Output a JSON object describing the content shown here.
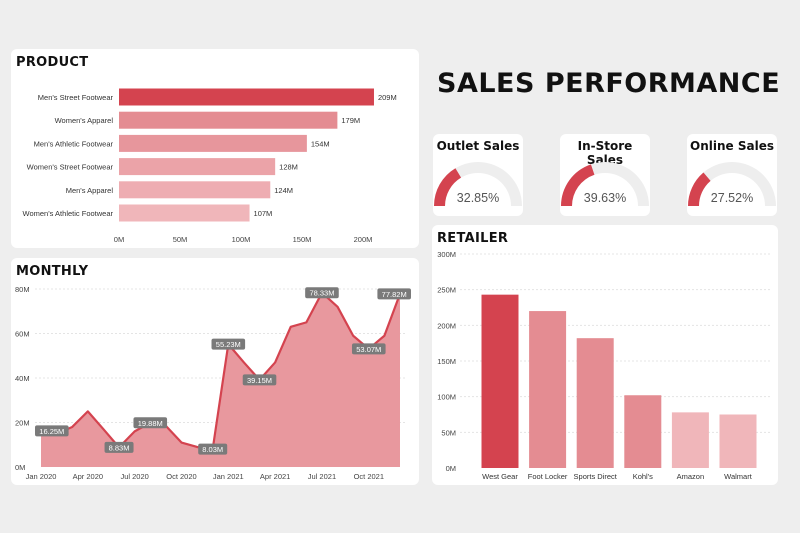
{
  "page_title": "SALES PERFORMANCE",
  "colors": {
    "accent": "#d4434f",
    "mid": "#e7949a",
    "light": "#f0b9bd",
    "area": "#e8989e",
    "track": "#eeeeee"
  },
  "kpis": [
    {
      "label": "Outlet Sales",
      "value": 32.85,
      "display": "32.85%"
    },
    {
      "label": "In-Store Sales",
      "value": 39.63,
      "display": "39.63%"
    },
    {
      "label": "Online Sales",
      "value": 27.52,
      "display": "27.52%"
    }
  ],
  "chart_data": [
    {
      "id": "product",
      "title": "PRODUCT",
      "type": "bar",
      "orientation": "horizontal",
      "categories": [
        "Men's Street Footwear",
        "Women's Apparel",
        "Men's Athletic Footwear",
        "Women's Street Footwear",
        "Men's Apparel",
        "Women's Athletic Footwear"
      ],
      "values": [
        209,
        179,
        154,
        128,
        124,
        107
      ],
      "data_labels": [
        "209M",
        "179M",
        "154M",
        "128M",
        "124M",
        "107M"
      ],
      "bar_colors": [
        "#d4434f",
        "#e48c92",
        "#e7969c",
        "#eba3a8",
        "#eeadb2",
        "#f0b6ba"
      ],
      "xlim": [
        0,
        200
      ],
      "x_ticks": [
        0,
        50,
        100,
        150,
        200
      ],
      "x_tick_labels": [
        "0M",
        "50M",
        "100M",
        "150M",
        "200M"
      ]
    },
    {
      "id": "monthly",
      "title": "MONTHLY",
      "type": "area",
      "x": [
        "2020-01",
        "2020-02",
        "2020-03",
        "2020-04",
        "2020-05",
        "2020-06",
        "2020-07",
        "2020-08",
        "2020-09",
        "2020-10",
        "2020-11",
        "2020-12",
        "2021-01",
        "2021-02",
        "2021-03",
        "2021-04",
        "2021-05",
        "2021-06",
        "2021-07",
        "2021-08",
        "2021-09",
        "2021-10",
        "2021-11",
        "2021-12"
      ],
      "values": [
        16.25,
        15,
        18,
        25,
        17,
        8.83,
        16,
        19.88,
        18.5,
        11,
        9,
        8.03,
        55.23,
        47,
        39.15,
        47,
        63,
        65,
        78.33,
        72,
        59,
        53.07,
        59,
        77.82
      ],
      "data_labels": [
        {
          "index": 0,
          "text": "16.25M"
        },
        {
          "index": 5,
          "text": "8.83M"
        },
        {
          "index": 7,
          "text": "19.88M"
        },
        {
          "index": 11,
          "text": "8.03M"
        },
        {
          "index": 12,
          "text": "55.23M"
        },
        {
          "index": 14,
          "text": "39.15M"
        },
        {
          "index": 18,
          "text": "78.33M"
        },
        {
          "index": 21,
          "text": "53.07M"
        },
        {
          "index": 23,
          "text": "77.82M"
        }
      ],
      "ylim": [
        0,
        80
      ],
      "y_ticks": [
        0,
        20,
        40,
        60,
        80
      ],
      "y_tick_labels": [
        "0M",
        "20M",
        "40M",
        "60M",
        "80M"
      ],
      "x_tick_indices": [
        0,
        3,
        6,
        9,
        12,
        15,
        18,
        21
      ],
      "x_tick_labels": [
        "Jan 2020",
        "Apr 2020",
        "Jul 2020",
        "Oct 2020",
        "Jan 2021",
        "Apr 2021",
        "Jul 2021",
        "Oct 2021"
      ],
      "line_color": "#d4434f",
      "fill_color": "#e8989e"
    },
    {
      "id": "retailer",
      "title": "RETAILER",
      "type": "bar",
      "orientation": "vertical",
      "categories": [
        "West Gear",
        "Foot Locker",
        "Sports Direct",
        "Kohl's",
        "Amazon",
        "Walmart"
      ],
      "values": [
        243,
        220,
        182,
        102,
        78,
        75
      ],
      "bar_colors": [
        "#d4434f",
        "#e48c92",
        "#e48c92",
        "#e48c92",
        "#f0b6ba",
        "#f0b6ba"
      ],
      "ylim": [
        0,
        300
      ],
      "y_ticks": [
        0,
        50,
        100,
        150,
        200,
        250,
        300
      ],
      "y_tick_labels": [
        "0M",
        "50M",
        "100M",
        "150M",
        "200M",
        "250M",
        "300M"
      ],
      "grid": true
    }
  ]
}
